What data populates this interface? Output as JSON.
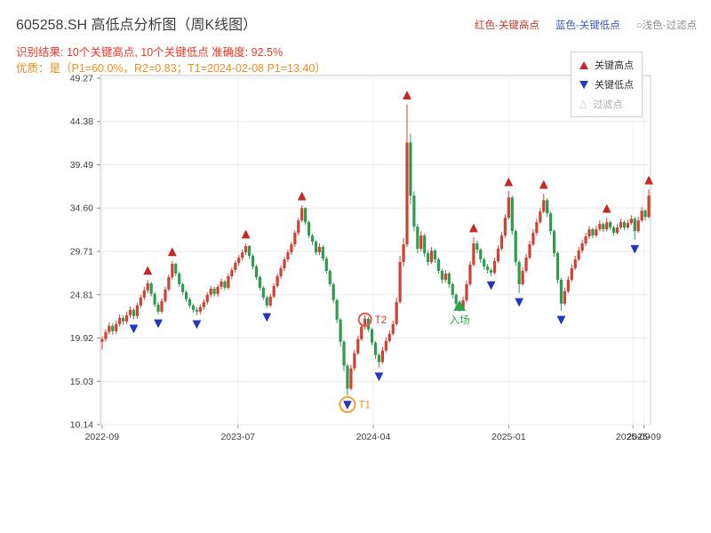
{
  "header": {
    "title": "605258.SH 高低点分析图（周K线图）",
    "legend_inline": [
      {
        "label": "红色-关键高点",
        "color": "#c0392b"
      },
      {
        "label": "蓝色-关键低点",
        "color": "#3b5bc4"
      },
      {
        "label": "○浅色-过滤点",
        "color": "#8c8c8c"
      }
    ],
    "result_line": "识别结果: 10个关键高点, 10个关键低点  准确度: 92.5%",
    "quality_line": "优质：是（P1=60.0%，R2=0.83；T1=2024-02-08 P1=13.40）"
  },
  "legend_box": {
    "items": [
      {
        "label": "关键高点",
        "marker": "triangle-up",
        "color": "#d02622"
      },
      {
        "label": "关键低点",
        "marker": "triangle-down",
        "color": "#2436c9"
      },
      {
        "label": "过滤点",
        "marker": "triangle-hollow",
        "color": "#c4c4c4"
      }
    ]
  },
  "chart_data": {
    "type": "candlestick",
    "timeframe": "weekly",
    "title": "605258.SH 高低点分析图（周K线图）",
    "grid": true,
    "legend_position": "upper right",
    "y_min": 10.14,
    "y_max": 49.27,
    "y_ticks": [
      "49.27",
      "44.38",
      "39.49",
      "34.60",
      "29.71",
      "24.81",
      "19.92",
      "15.03",
      "10.14"
    ],
    "x_ticks": [
      {
        "label": "2022-09",
        "f": 0.003
      },
      {
        "label": "2023-07",
        "f": 0.25
      },
      {
        "label": "2024-04",
        "f": 0.496
      },
      {
        "label": "2025-01",
        "f": 0.742
      },
      {
        "label": "2025-09",
        "f": 0.968
      },
      {
        "label": "2025-09",
        "f": 0.988
      }
    ],
    "up_color": "#cf4133",
    "down_color": "#2e9c4f",
    "high_marker_color": "#d42420",
    "low_marker_color": "#2436c9",
    "candles": [
      [
        19.5,
        20.1,
        18.6,
        19.8
      ],
      [
        19.8,
        20.9,
        19.5,
        20.6
      ],
      [
        20.6,
        21.7,
        20.3,
        21.3
      ],
      [
        21.3,
        21.6,
        20.3,
        20.7
      ],
      [
        20.7,
        21.9,
        20.4,
        21.5
      ],
      [
        21.5,
        22.6,
        21.2,
        22.2
      ],
      [
        22.2,
        22.5,
        21.4,
        21.8
      ],
      [
        21.8,
        22.9,
        21.5,
        22.5
      ],
      [
        22.5,
        23.5,
        22.2,
        23.1
      ],
      [
        23.1,
        23.3,
        22.0,
        22.4
      ],
      [
        22.4,
        23.9,
        22.1,
        23.6
      ],
      [
        23.6,
        24.8,
        23.3,
        24.5
      ],
      [
        24.5,
        25.7,
        24.2,
        25.3
      ],
      [
        25.3,
        26.5,
        25.0,
        26.1
      ],
      [
        26.1,
        26.3,
        24.6,
        24.9
      ],
      [
        24.9,
        25.1,
        23.4,
        23.7
      ],
      [
        23.7,
        24.0,
        22.6,
        22.9
      ],
      [
        22.9,
        24.4,
        22.7,
        24.1
      ],
      [
        24.1,
        25.7,
        23.9,
        25.4
      ],
      [
        25.4,
        27.1,
        25.2,
        26.8
      ],
      [
        26.8,
        28.6,
        26.5,
        28.3
      ],
      [
        28.3,
        28.4,
        26.9,
        27.2
      ],
      [
        27.2,
        27.4,
        25.7,
        26.0
      ],
      [
        26.0,
        26.2,
        24.8,
        25.1
      ],
      [
        25.1,
        25.3,
        24.0,
        24.3
      ],
      [
        24.3,
        24.5,
        23.3,
        23.6
      ],
      [
        23.6,
        23.8,
        22.8,
        23.1
      ],
      [
        23.1,
        23.4,
        22.5,
        22.9
      ],
      [
        22.9,
        23.7,
        22.6,
        23.4
      ],
      [
        23.4,
        24.3,
        23.1,
        24.0
      ],
      [
        24.0,
        25.1,
        23.7,
        24.8
      ],
      [
        24.8,
        25.8,
        24.5,
        25.5
      ],
      [
        25.5,
        25.7,
        24.6,
        24.9
      ],
      [
        24.9,
        26.0,
        24.6,
        25.7
      ],
      [
        25.7,
        26.6,
        25.4,
        26.3
      ],
      [
        26.3,
        26.5,
        25.3,
        25.6
      ],
      [
        25.6,
        27.2,
        25.4,
        26.9
      ],
      [
        26.9,
        27.9,
        26.6,
        27.6
      ],
      [
        27.6,
        28.7,
        27.3,
        28.4
      ],
      [
        28.4,
        29.3,
        28.1,
        29.0
      ],
      [
        29.0,
        29.9,
        28.7,
        29.6
      ],
      [
        29.6,
        30.6,
        29.3,
        30.3
      ],
      [
        30.3,
        30.4,
        28.9,
        29.2
      ],
      [
        29.2,
        29.4,
        27.7,
        28.0
      ],
      [
        28.0,
        28.2,
        26.5,
        26.8
      ],
      [
        26.8,
        27.0,
        25.3,
        25.6
      ],
      [
        25.6,
        25.8,
        24.2,
        24.5
      ],
      [
        24.5,
        24.7,
        23.3,
        23.6
      ],
      [
        23.6,
        24.9,
        23.4,
        24.6
      ],
      [
        24.6,
        26.1,
        24.4,
        25.8
      ],
      [
        25.8,
        27.2,
        25.6,
        26.9
      ],
      [
        26.9,
        28.1,
        26.6,
        27.8
      ],
      [
        27.8,
        29.1,
        27.5,
        28.8
      ],
      [
        28.8,
        29.9,
        28.5,
        29.6
      ],
      [
        29.6,
        30.8,
        29.3,
        30.5
      ],
      [
        30.5,
        32.1,
        30.2,
        31.8
      ],
      [
        31.8,
        33.5,
        31.5,
        33.2
      ],
      [
        33.2,
        34.9,
        33.0,
        34.6
      ],
      [
        34.6,
        34.7,
        32.7,
        33.0
      ],
      [
        33.0,
        33.2,
        31.2,
        31.5
      ],
      [
        31.5,
        31.7,
        30.4,
        30.8
      ],
      [
        30.8,
        31.0,
        29.3,
        29.6
      ],
      [
        29.6,
        30.6,
        29.3,
        30.2
      ],
      [
        30.2,
        30.4,
        28.6,
        28.9
      ],
      [
        28.9,
        29.1,
        27.2,
        27.5
      ],
      [
        27.5,
        27.7,
        25.7,
        26.0
      ],
      [
        26.0,
        26.2,
        23.9,
        24.2
      ],
      [
        24.2,
        24.4,
        21.6,
        22.0
      ],
      [
        22.0,
        22.2,
        19.0,
        19.5
      ],
      [
        19.5,
        19.7,
        16.2,
        16.8
      ],
      [
        16.8,
        17.0,
        13.4,
        14.2
      ],
      [
        14.2,
        16.9,
        14.0,
        16.5
      ],
      [
        16.5,
        18.6,
        16.2,
        18.2
      ],
      [
        18.2,
        20.2,
        18.0,
        19.8
      ],
      [
        19.8,
        21.6,
        19.6,
        21.2
      ],
      [
        21.2,
        22.5,
        20.9,
        22.1
      ],
      [
        22.1,
        22.3,
        20.6,
        20.9
      ],
      [
        20.9,
        21.1,
        19.1,
        19.4
      ],
      [
        19.4,
        19.6,
        17.6,
        18.0
      ],
      [
        18.0,
        18.2,
        16.6,
        17.2
      ],
      [
        17.2,
        18.9,
        17.0,
        18.5
      ],
      [
        18.5,
        20.0,
        18.3,
        19.6
      ],
      [
        19.6,
        20.8,
        19.4,
        20.4
      ],
      [
        20.4,
        21.9,
        20.2,
        21.5
      ],
      [
        21.5,
        24.5,
        21.3,
        24.0
      ],
      [
        24.0,
        29.2,
        23.8,
        28.5
      ],
      [
        28.5,
        31.2,
        28.0,
        30.5
      ],
      [
        30.5,
        46.3,
        30.2,
        42.0
      ],
      [
        42.0,
        43.0,
        35.0,
        36.0
      ],
      [
        36.0,
        36.5,
        32.0,
        32.5
      ],
      [
        32.5,
        32.8,
        29.5,
        30.0
      ],
      [
        30.0,
        32.0,
        29.7,
        31.5
      ],
      [
        31.5,
        31.7,
        29.1,
        29.5
      ],
      [
        29.5,
        29.8,
        28.1,
        28.5
      ],
      [
        28.5,
        30.2,
        28.3,
        29.8
      ],
      [
        29.8,
        30.0,
        28.4,
        28.8
      ],
      [
        28.8,
        29.0,
        27.2,
        27.5
      ],
      [
        27.5,
        27.7,
        26.1,
        26.5
      ],
      [
        26.5,
        27.6,
        26.2,
        27.2
      ],
      [
        27.2,
        27.4,
        25.6,
        26.0
      ],
      [
        26.0,
        26.2,
        24.4,
        24.8
      ],
      [
        24.8,
        25.0,
        23.4,
        23.8
      ],
      [
        23.8,
        24.0,
        22.9,
        23.2
      ],
      [
        23.2,
        24.6,
        23.0,
        24.2
      ],
      [
        24.2,
        26.4,
        24.0,
        26.0
      ],
      [
        26.0,
        28.6,
        25.8,
        28.2
      ],
      [
        28.2,
        31.3,
        28.0,
        30.6
      ],
      [
        30.6,
        30.9,
        29.5,
        29.9
      ],
      [
        29.9,
        30.1,
        28.4,
        28.8
      ],
      [
        28.8,
        29.0,
        27.6,
        28.0
      ],
      [
        28.0,
        28.3,
        27.2,
        27.6
      ],
      [
        27.6,
        27.8,
        26.9,
        27.3
      ],
      [
        27.3,
        29.0,
        27.1,
        28.6
      ],
      [
        28.6,
        30.4,
        28.4,
        30.0
      ],
      [
        30.0,
        31.9,
        29.8,
        31.5
      ],
      [
        31.5,
        33.9,
        31.2,
        33.5
      ],
      [
        33.5,
        36.5,
        33.3,
        35.8
      ],
      [
        35.8,
        36.0,
        31.6,
        32.0
      ],
      [
        32.0,
        32.2,
        28.1,
        28.5
      ],
      [
        28.5,
        28.7,
        25.0,
        26.0
      ],
      [
        26.0,
        27.9,
        25.8,
        27.5
      ],
      [
        27.5,
        29.4,
        27.3,
        29.0
      ],
      [
        29.0,
        30.9,
        28.8,
        30.5
      ],
      [
        30.5,
        32.2,
        30.3,
        31.8
      ],
      [
        31.8,
        33.4,
        31.5,
        33.0
      ],
      [
        33.0,
        34.6,
        32.8,
        34.2
      ],
      [
        34.2,
        36.2,
        34.0,
        35.5
      ],
      [
        35.5,
        35.7,
        33.6,
        34.0
      ],
      [
        34.0,
        34.2,
        31.6,
        32.0
      ],
      [
        32.0,
        32.2,
        29.1,
        29.5
      ],
      [
        29.5,
        29.7,
        26.1,
        26.5
      ],
      [
        26.5,
        26.7,
        23.0,
        23.8
      ],
      [
        23.8,
        25.6,
        23.6,
        25.2
      ],
      [
        25.2,
        26.9,
        25.0,
        26.5
      ],
      [
        26.5,
        28.2,
        26.3,
        27.8
      ],
      [
        27.8,
        29.2,
        27.6,
        28.8
      ],
      [
        28.8,
        30.2,
        28.6,
        29.8
      ],
      [
        29.8,
        31.0,
        29.5,
        30.6
      ],
      [
        30.6,
        31.8,
        30.3,
        31.4
      ],
      [
        31.4,
        32.6,
        31.1,
        32.2
      ],
      [
        32.2,
        32.4,
        31.2,
        31.5
      ],
      [
        31.5,
        32.6,
        31.3,
        32.2
      ],
      [
        32.2,
        33.2,
        32.0,
        32.8
      ],
      [
        32.8,
        33.0,
        31.9,
        32.2
      ],
      [
        32.2,
        33.5,
        32.0,
        33.0
      ],
      [
        33.0,
        33.2,
        32.1,
        32.4
      ],
      [
        32.4,
        32.6,
        31.5,
        31.8
      ],
      [
        31.8,
        32.8,
        31.6,
        32.4
      ],
      [
        32.4,
        33.4,
        32.2,
        33.0
      ],
      [
        33.0,
        33.2,
        32.1,
        32.4
      ],
      [
        32.4,
        33.3,
        32.2,
        32.9
      ],
      [
        32.9,
        33.8,
        32.7,
        33.4
      ],
      [
        33.4,
        33.6,
        31.0,
        32.0
      ],
      [
        32.0,
        33.6,
        31.8,
        33.2
      ],
      [
        33.2,
        34.7,
        33.0,
        34.3
      ],
      [
        34.3,
        34.5,
        33.2,
        33.6
      ],
      [
        33.6,
        36.7,
        33.4,
        36.0
      ]
    ],
    "key_highs": [
      {
        "i": 13,
        "v": 26.5
      },
      {
        "i": 20,
        "v": 28.6
      },
      {
        "i": 41,
        "v": 30.6
      },
      {
        "i": 57,
        "v": 34.9
      },
      {
        "i": 87,
        "v": 46.3
      },
      {
        "i": 106,
        "v": 31.3
      },
      {
        "i": 116,
        "v": 36.5
      },
      {
        "i": 126,
        "v": 36.2
      },
      {
        "i": 144,
        "v": 33.5
      },
      {
        "i": 156,
        "v": 36.7
      }
    ],
    "key_lows": [
      {
        "i": 9,
        "v": 22.0
      },
      {
        "i": 16,
        "v": 22.6
      },
      {
        "i": 27,
        "v": 22.5
      },
      {
        "i": 47,
        "v": 23.3
      },
      {
        "i": 70,
        "v": 13.4
      },
      {
        "i": 79,
        "v": 16.6
      },
      {
        "i": 111,
        "v": 26.9
      },
      {
        "i": 119,
        "v": 25.0
      },
      {
        "i": 131,
        "v": 23.0
      },
      {
        "i": 152,
        "v": 31.0
      }
    ],
    "annotations": [
      {
        "type": "circle",
        "label": "T1",
        "i": 70,
        "price": 12.4,
        "radius": 8.5,
        "color": "#f2a33c",
        "label_color": "#ef9418"
      },
      {
        "type": "circle",
        "label": "T2",
        "i": 75,
        "price": 22.0,
        "radius": 7,
        "color": "#e05a4e",
        "label_color": "#d43a2f"
      },
      {
        "type": "entry",
        "label": "入场",
        "i": 102,
        "price": 24.2,
        "color": "#2ca44e"
      }
    ]
  }
}
